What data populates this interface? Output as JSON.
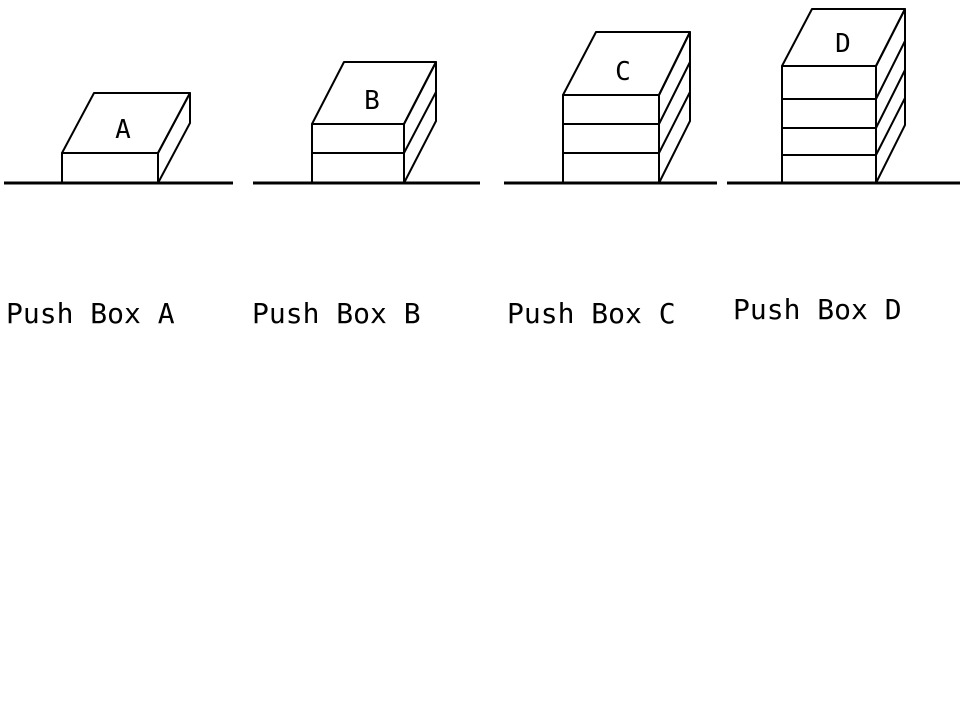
{
  "boxes": [
    {
      "letter": "A",
      "layers": 1,
      "caption": "Push Box A"
    },
    {
      "letter": "B",
      "layers": 2,
      "caption": "Push Box B"
    },
    {
      "letter": "C",
      "layers": 3,
      "caption": "Push Box C"
    },
    {
      "letter": "D",
      "layers": 4,
      "caption": "Push Box D"
    }
  ]
}
